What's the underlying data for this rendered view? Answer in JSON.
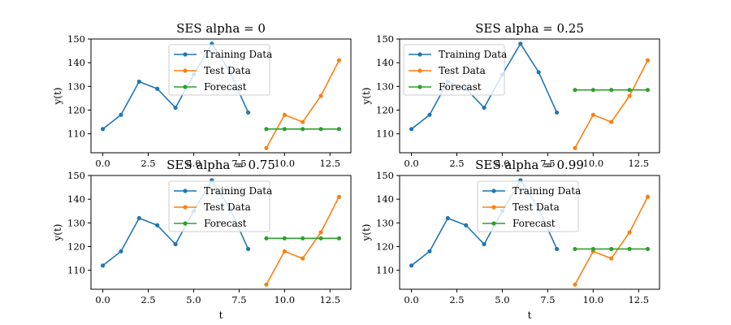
{
  "figure": {
    "background": "#ffffff"
  },
  "colors": {
    "training": "#1f77b4",
    "test": "#ff7f0e",
    "forecast": "#2ca02c"
  },
  "chart_data": [
    {
      "type": "line",
      "title": "SES alpha = 0",
      "xlabel": "",
      "ylabel": "y(t)",
      "xlim": [
        -0.65,
        13.65
      ],
      "ylim": [
        102,
        150
      ],
      "xticks": [
        0.0,
        2.5,
        5.0,
        7.5,
        10.0,
        12.5
      ],
      "xtick_labels": [
        "0.0",
        "2.5",
        "5.0",
        "7.5",
        "10.0",
        "12.5"
      ],
      "yticks": [
        110,
        120,
        130,
        140,
        150
      ],
      "ytick_labels": [
        "110",
        "120",
        "130",
        "140",
        "150"
      ],
      "legend": "upper center",
      "series": [
        {
          "name": "Training Data",
          "x": [
            0,
            1,
            2,
            3,
            4,
            5,
            6,
            7,
            8
          ],
          "y": [
            112,
            118,
            132,
            129,
            121,
            135,
            148,
            136,
            119
          ]
        },
        {
          "name": "Test Data",
          "x": [
            9,
            10,
            11,
            12,
            13
          ],
          "y": [
            104,
            118,
            115,
            126,
            141
          ]
        },
        {
          "name": "Forecast",
          "x": [
            9,
            10,
            11,
            12,
            13
          ],
          "y": [
            112,
            112,
            112,
            112,
            112
          ]
        }
      ]
    },
    {
      "type": "line",
      "title": "SES alpha = 0.25",
      "xlabel": "",
      "ylabel": "y(t)",
      "xlim": [
        -0.65,
        13.65
      ],
      "ylim": [
        102,
        150
      ],
      "xticks": [
        0.0,
        2.5,
        5.0,
        7.5,
        10.0,
        12.5
      ],
      "xtick_labels": [
        "0.0",
        "2.5",
        "5.0",
        "7.5",
        "10.0",
        "12.5"
      ],
      "yticks": [
        110,
        120,
        130,
        140,
        150
      ],
      "ytick_labels": [
        "110",
        "120",
        "130",
        "140",
        "150"
      ],
      "legend": "upper left",
      "series": [
        {
          "name": "Training Data",
          "x": [
            0,
            1,
            2,
            3,
            4,
            5,
            6,
            7,
            8
          ],
          "y": [
            112,
            118,
            132,
            129,
            121,
            135,
            148,
            136,
            119
          ]
        },
        {
          "name": "Test Data",
          "x": [
            9,
            10,
            11,
            12,
            13
          ],
          "y": [
            104,
            118,
            115,
            126,
            141
          ]
        },
        {
          "name": "Forecast",
          "x": [
            9,
            10,
            11,
            12,
            13
          ],
          "y": [
            128.5,
            128.5,
            128.5,
            128.5,
            128.5
          ]
        }
      ]
    },
    {
      "type": "line",
      "title": "SES alpha = 0.75",
      "xlabel": "t",
      "ylabel": "y(t)",
      "xlim": [
        -0.65,
        13.65
      ],
      "ylim": [
        102,
        150
      ],
      "xticks": [
        0.0,
        2.5,
        5.0,
        7.5,
        10.0,
        12.5
      ],
      "xtick_labels": [
        "0.0",
        "2.5",
        "5.0",
        "7.5",
        "10.0",
        "12.5"
      ],
      "yticks": [
        110,
        120,
        130,
        140,
        150
      ],
      "ytick_labels": [
        "110",
        "120",
        "130",
        "140",
        "150"
      ],
      "legend": "upper center",
      "series": [
        {
          "name": "Training Data",
          "x": [
            0,
            1,
            2,
            3,
            4,
            5,
            6,
            7,
            8
          ],
          "y": [
            112,
            118,
            132,
            129,
            121,
            135,
            148,
            136,
            119
          ]
        },
        {
          "name": "Test Data",
          "x": [
            9,
            10,
            11,
            12,
            13
          ],
          "y": [
            104,
            118,
            115,
            126,
            141
          ]
        },
        {
          "name": "Forecast",
          "x": [
            9,
            10,
            11,
            12,
            13
          ],
          "y": [
            123.5,
            123.5,
            123.5,
            123.5,
            123.5
          ]
        }
      ]
    },
    {
      "type": "line",
      "title": "SES alpha = 0.99",
      "xlabel": "t",
      "ylabel": "y(t)",
      "xlim": [
        -0.65,
        13.65
      ],
      "ylim": [
        102,
        150
      ],
      "xticks": [
        0.0,
        2.5,
        5.0,
        7.5,
        10.0,
        12.5
      ],
      "xtick_labels": [
        "0.0",
        "2.5",
        "5.0",
        "7.5",
        "10.0",
        "12.5"
      ],
      "yticks": [
        110,
        120,
        130,
        140,
        150
      ],
      "ytick_labels": [
        "110",
        "120",
        "130",
        "140",
        "150"
      ],
      "legend": "upper center",
      "series": [
        {
          "name": "Training Data",
          "x": [
            0,
            1,
            2,
            3,
            4,
            5,
            6,
            7,
            8
          ],
          "y": [
            112,
            118,
            132,
            129,
            121,
            135,
            148,
            136,
            119
          ]
        },
        {
          "name": "Test Data",
          "x": [
            9,
            10,
            11,
            12,
            13
          ],
          "y": [
            104,
            118,
            115,
            126,
            141
          ]
        },
        {
          "name": "Forecast",
          "x": [
            9,
            10,
            11,
            12,
            13
          ],
          "y": [
            119,
            119,
            119,
            119,
            119
          ]
        }
      ]
    }
  ]
}
